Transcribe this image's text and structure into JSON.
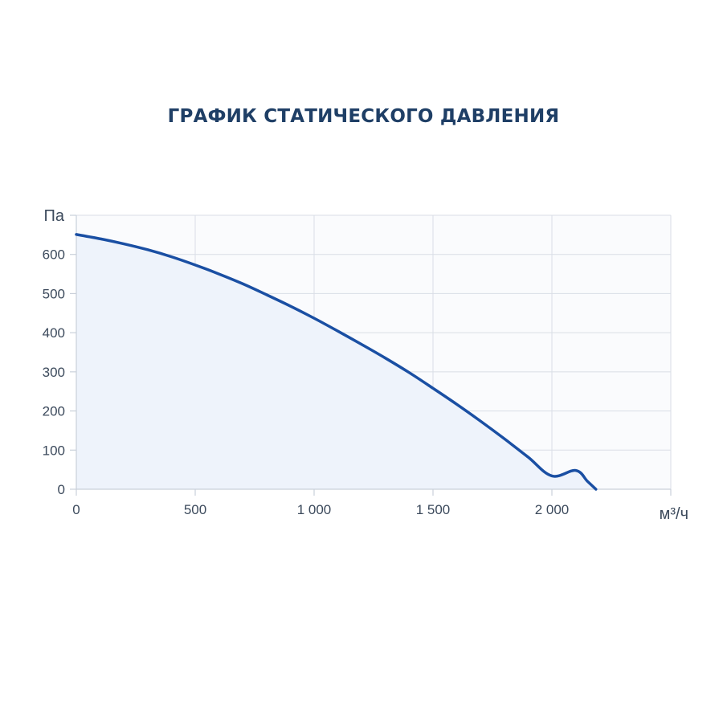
{
  "page": {
    "title": "ГРАФИК СТАТИЧЕСКОГО ДАВЛЕНИЯ"
  },
  "colors": {
    "title": "#1f3f66",
    "curve": "#1a4fa3",
    "fill": "#eef3fb",
    "grid": "#d9dee6",
    "plot_background": "#fafbfd",
    "tick_text": "#3c4a5c"
  },
  "chart_data": {
    "type": "line",
    "title": "ГРАФИК СТАТИЧЕСКОГО ДАВЛЕНИЯ",
    "xlabel": "м³/ч",
    "ylabel": "Па",
    "xlim": [
      0,
      2500
    ],
    "ylim": [
      0,
      700
    ],
    "x_ticks": [
      {
        "value": 0,
        "label": "0"
      },
      {
        "value": 500,
        "label": "500"
      },
      {
        "value": 1000,
        "label": "1 000"
      },
      {
        "value": 1500,
        "label": "1 500"
      },
      {
        "value": 2000,
        "label": "2 000"
      }
    ],
    "y_ticks": [
      {
        "value": 0,
        "label": "0"
      },
      {
        "value": 100,
        "label": "100"
      },
      {
        "value": 200,
        "label": "200"
      },
      {
        "value": 300,
        "label": "300"
      },
      {
        "value": 400,
        "label": "400"
      },
      {
        "value": 500,
        "label": "500"
      },
      {
        "value": 600,
        "label": "600"
      }
    ],
    "grid": true,
    "area_fill": true,
    "series": [
      {
        "x": [
          0,
          100,
          200,
          300,
          400,
          500,
          600,
          700,
          800,
          900,
          1000,
          1100,
          1200,
          1300,
          1400,
          1500,
          1600,
          1700,
          1800,
          1900,
          2000,
          2100,
          2150,
          2185
        ],
        "y": [
          651,
          640,
          627,
          612,
          594,
          573,
          550,
          525,
          497,
          468,
          437,
          404,
          370,
          335,
          298,
          258,
          217,
          174,
          129,
          82,
          34,
          48,
          20,
          0
        ]
      }
    ]
  }
}
